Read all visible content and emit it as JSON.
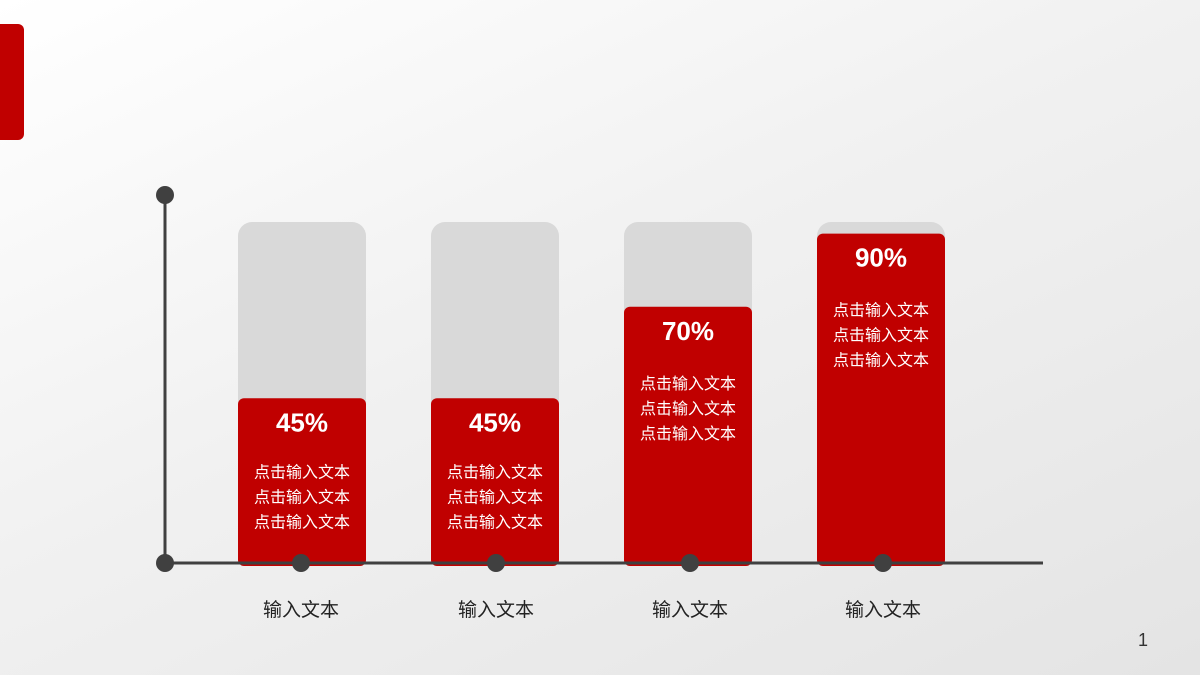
{
  "colors": {
    "accent": "#c00000",
    "track": "#d9d9d9",
    "axis": "#404040",
    "value_text": "#ffffff",
    "label_text": "#222222"
  },
  "slide": {
    "page_number": "1"
  },
  "chart_data": {
    "type": "bar",
    "categories": [
      "输入文本",
      "输入文本",
      "输入文本",
      "输入文本"
    ],
    "values": [
      45,
      45,
      70,
      90
    ],
    "value_labels": [
      "45%",
      "45%",
      "70%",
      "90%"
    ],
    "descriptions": [
      [
        "点击输入文本",
        "点击输入文本",
        "点击输入文本"
      ],
      [
        "点击输入文本",
        "点击输入文本",
        "点击输入文本"
      ],
      [
        "点击输入文本",
        "点击输入文本",
        "点击输入文本"
      ],
      [
        "点击输入文本",
        "点击输入文本",
        "点击输入文本"
      ]
    ],
    "title": "",
    "xlabel": "",
    "ylabel": "",
    "ylim": [
      0,
      100
    ],
    "grid": false,
    "legend": "none"
  }
}
